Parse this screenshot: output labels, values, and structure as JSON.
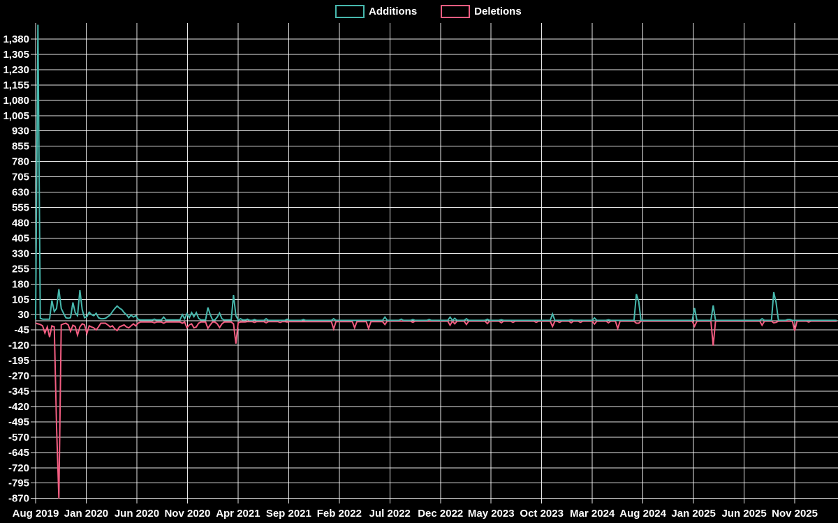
{
  "legend": {
    "items": [
      {
        "label": "Additions",
        "color": "#47b8ad"
      },
      {
        "label": "Deletions",
        "color": "#f25d81"
      }
    ]
  },
  "colors": {
    "background": "#000000",
    "grid": "#ffffff",
    "text": "#ffffff",
    "additions": "#47b8ad",
    "deletions": "#f25d81"
  },
  "chart_data": {
    "type": "line",
    "title": "",
    "xlabel": "",
    "ylabel": "",
    "grid": true,
    "legend_position": "top-center",
    "x_axis": {
      "unit": "weeks",
      "start_label": "Aug 2019",
      "end_label": "Nov 2025",
      "tick_labels": [
        "Aug 2019",
        "Jan 2020",
        "Jun 2020",
        "Nov 2020",
        "Apr 2021",
        "Sep 2021",
        "Feb 2022",
        "Jul 2022",
        "Dec 2022",
        "May 2023",
        "Oct 2023",
        "Mar 2024",
        "Aug 2024",
        "Jan 2025",
        "Jun 2025",
        "Nov 2025"
      ]
    },
    "y_axis": {
      "min": -870,
      "max": 1380,
      "step": 75
    },
    "weeks_total": 344,
    "series": [
      {
        "name": "Additions",
        "color": "#47b8ad",
        "baseline": [
          {
            "through": 44,
            "value": 8
          },
          {
            "through": 90,
            "value": 4
          },
          {
            "through": 150,
            "value": 2
          },
          {
            "through": 344,
            "value": 2
          }
        ],
        "points": {
          "0": 8,
          "1": 1450,
          "2": 12,
          "7": 100,
          "8": 45,
          "9": 60,
          "10": 155,
          "11": 60,
          "12": 37,
          "13": 15,
          "14": 12,
          "15": 15,
          "16": 90,
          "17": 40,
          "18": 25,
          "19": 150,
          "20": 55,
          "21": 15,
          "22": 20,
          "23": 42,
          "24": 30,
          "25": 25,
          "26": 37,
          "27": 15,
          "28": 10,
          "29": 10,
          "30": 12,
          "31": 20,
          "32": 28,
          "33": 45,
          "34": 60,
          "35": 72,
          "36": 62,
          "37": 55,
          "38": 40,
          "39": 30,
          "40": 15,
          "41": 28,
          "42": 18,
          "43": 25,
          "44": 8,
          "51": 8,
          "55": 18,
          "63": 30,
          "64": 10,
          "65": 35,
          "66": 15,
          "67": 40,
          "68": 20,
          "69": 40,
          "70": 12,
          "74": 65,
          "75": 30,
          "78": 18,
          "79": 38,
          "80": 10,
          "85": 126,
          "86": 25,
          "88": 10,
          "91": 8,
          "94": 6,
          "99": 10,
          "108": 8,
          "115": 6,
          "128": 10,
          "150": 18,
          "157": 8,
          "162": 6,
          "169": 6,
          "178": 18,
          "180": 12,
          "185": 10,
          "194": 8,
          "200": 5,
          "222": 33,
          "230": 4,
          "240": 14,
          "246": 5,
          "258": 130,
          "259": 95,
          "283": 62,
          "291": 75,
          "312": 10,
          "317": 140,
          "318": 90,
          "323": 6,
          "324": 6
        }
      },
      {
        "name": "Deletions",
        "color": "#f25d81",
        "baseline": [
          {
            "through": 44,
            "value": -12
          },
          {
            "through": 90,
            "value": -6
          },
          {
            "through": 150,
            "value": -4
          },
          {
            "through": 344,
            "value": -2
          }
        ],
        "points": {
          "0": -12,
          "1": -15,
          "2": -18,
          "3": -25,
          "4": -60,
          "5": -30,
          "6": -80,
          "7": -25,
          "8": -30,
          "9": -520,
          "10": -870,
          "11": -20,
          "12": -15,
          "13": -12,
          "14": -20,
          "15": -52,
          "16": -22,
          "17": -28,
          "18": -70,
          "19": -30,
          "20": -15,
          "21": -20,
          "22": -62,
          "23": -25,
          "24": -30,
          "25": -35,
          "26": -45,
          "27": -30,
          "28": -12,
          "29": -12,
          "30": -12,
          "31": -20,
          "32": -30,
          "33": -25,
          "34": -40,
          "35": -48,
          "36": -30,
          "37": -25,
          "38": -20,
          "39": -30,
          "40": -35,
          "41": -25,
          "42": -15,
          "43": -25,
          "44": -12,
          "51": -10,
          "55": -12,
          "63": -12,
          "65": -35,
          "66": -20,
          "67": -15,
          "68": -35,
          "69": -30,
          "70": -12,
          "74": -37,
          "75": -20,
          "78": -15,
          "79": -33,
          "80": -15,
          "85": -15,
          "86": -112,
          "87": -10,
          "94": -8,
          "99": -10,
          "105": -8,
          "108": -6,
          "128": -40,
          "137": -34,
          "143": -38,
          "150": -18,
          "162": -8,
          "178": -22,
          "180": -15,
          "185": -18,
          "194": -14,
          "200": -10,
          "205": -8,
          "215": -8,
          "222": -28,
          "225": -8,
          "230": -10,
          "234": -8,
          "240": -16,
          "246": -10,
          "250": -38,
          "258": -12,
          "259": -12,
          "283": -27,
          "291": -122,
          "312": -22,
          "317": -10,
          "318": -8,
          "326": -49,
          "332": -6
        }
      }
    ]
  }
}
